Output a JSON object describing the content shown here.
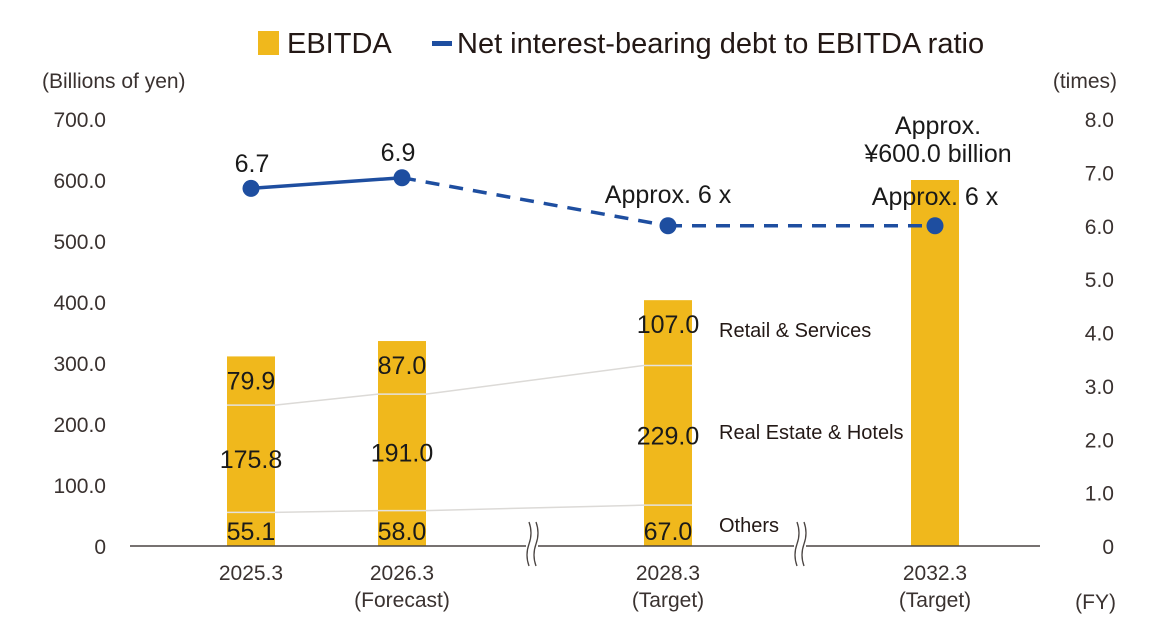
{
  "chart_data": {
    "type": "bar",
    "title": "",
    "legend": {
      "placement": "top-center",
      "items": [
        {
          "name": "EBITDA",
          "kind": "bar-swatch",
          "color": "#F0B81C"
        },
        {
          "name": "Net interest-bearing debt to EBITDA ratio",
          "kind": "line-swatch",
          "color": "#1E4EA0"
        }
      ]
    },
    "left_axis": {
      "label": "(Billions of yen)",
      "range": [
        0,
        700
      ],
      "ticks": [
        "0",
        "100.0",
        "200.0",
        "300.0",
        "400.0",
        "500.0",
        "600.0",
        "700.0"
      ],
      "tick_values": [
        0,
        100,
        200,
        300,
        400,
        500,
        600,
        700
      ]
    },
    "right_axis": {
      "label": "(times)",
      "range": [
        0,
        8
      ],
      "ticks": [
        "0",
        "1.0",
        "2.0",
        "3.0",
        "4.0",
        "5.0",
        "6.0",
        "7.0",
        "8.0"
      ],
      "tick_values": [
        0,
        1,
        2,
        3,
        4,
        5,
        6,
        7,
        8
      ]
    },
    "x_axis": {
      "unit_label": "(FY)",
      "categories": [
        {
          "year": "2025.3",
          "note": ""
        },
        {
          "year": "2026.3",
          "note": "(Forecast)"
        },
        {
          "year": "2028.3",
          "note": "(Target)"
        },
        {
          "year": "2032.3",
          "note": "(Target)"
        }
      ],
      "axis_breaks_after": [
        "2026.3",
        "2028.3"
      ]
    },
    "grid": false,
    "bar_color": "#F0B81C",
    "line_color": "#1E4EA0",
    "segments": [
      "Others",
      "Real Estate & Hotels",
      "Retail & Services"
    ],
    "series": [
      {
        "name": "Others",
        "values": [
          55.1,
          58.0,
          67.0,
          null
        ],
        "labels": [
          "55.1",
          "58.0",
          "67.0",
          ""
        ]
      },
      {
        "name": "Real Estate & Hotels",
        "values": [
          175.8,
          191.0,
          229.0,
          null
        ],
        "labels": [
          "175.8",
          "191.0",
          "229.0",
          ""
        ]
      },
      {
        "name": "Retail & Services",
        "values": [
          79.9,
          87.0,
          107.0,
          null
        ],
        "labels": [
          "79.9",
          "87.0",
          "107.0",
          ""
        ]
      }
    ],
    "ebitda_totals": [
      310.8,
      336.0,
      403.0,
      600.0
    ],
    "ebitda_total_annotation": {
      "category": "2032.3",
      "text_line1": "Approx.",
      "text_line2": "¥600.0 billion"
    },
    "ratio_series": {
      "name": "Net interest-bearing debt to EBITDA ratio",
      "values": [
        6.7,
        6.9,
        6.0,
        6.0
      ],
      "labels": [
        "6.7",
        "6.9",
        "Approx. 6 x",
        "Approx. 6 x"
      ],
      "solid_until_index": 1
    },
    "segment_name_labels": {
      "Retail & Services": "Retail & Services",
      "Real Estate & Hotels": "Real Estate & Hotels",
      "Others": "Others"
    }
  }
}
